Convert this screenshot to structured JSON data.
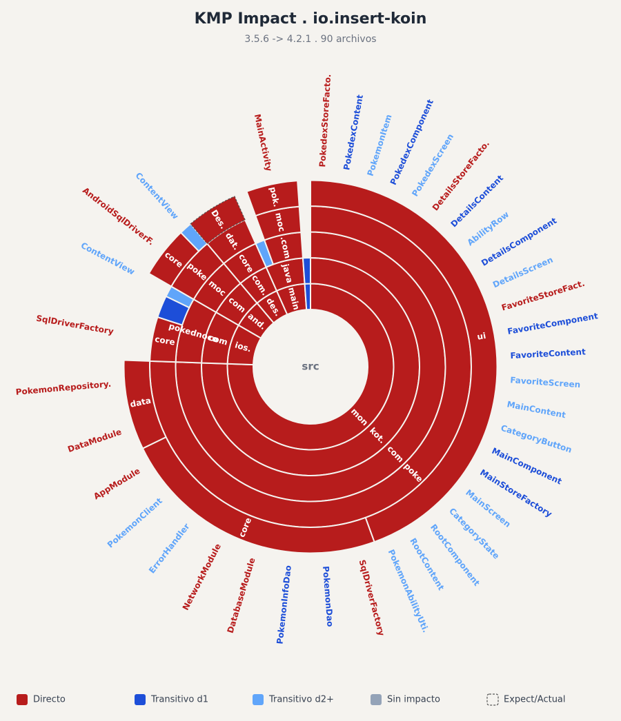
{
  "chart_data": {
    "type": "sunburst",
    "title": "KMP Impact . io.insert-koin",
    "subtitle": "3.5.6 -> 4.2.1 . 90 archivos",
    "root": "src",
    "legend": [
      {
        "name": "Directo",
        "color": "#b71c1c"
      },
      {
        "name": "Transitivo d1",
        "color": "#1d4ed8"
      },
      {
        "name": "Transitivo d2+",
        "color": "#60a5fa"
      },
      {
        "name": "Sin impacto",
        "color": "#94a3b8"
      },
      {
        "name": "Expect/Actual",
        "dashed": true
      }
    ],
    "nodes": [
      {
        "name": "mon",
        "status": 0,
        "files": 68,
        "children": [
          {
            "name": "kot.",
            "status": 0,
            "files": 68,
            "children": [
              {
                "name": "com",
                "status": 0,
                "files": 68,
                "children": [
                  {
                    "name": "poke",
                    "status": 0,
                    "files": 68,
                    "children": [
                      {
                        "name": "ui",
                        "status": 0,
                        "files": 40,
                        "leaves": [
                          {
                            "name": "PokedexStoreFacto.",
                            "status": 0
                          },
                          {
                            "name": "PokedexContent",
                            "status": 1
                          },
                          {
                            "name": "PokemonItem",
                            "status": 2
                          },
                          {
                            "name": "PokedexComponent",
                            "status": 1
                          },
                          {
                            "name": "PokedexScreen",
                            "status": 2
                          },
                          {
                            "name": "DetailsStoreFacto.",
                            "status": 0
                          },
                          {
                            "name": "DetailsContent",
                            "status": 1
                          },
                          {
                            "name": "AbilityRow",
                            "status": 2
                          },
                          {
                            "name": "DetailsComponent",
                            "status": 1
                          },
                          {
                            "name": "DetailsScreen",
                            "status": 2
                          },
                          {
                            "name": "FavoriteStoreFact.",
                            "status": 0
                          },
                          {
                            "name": "FavoriteComponent",
                            "status": 1
                          },
                          {
                            "name": "FavoriteContent",
                            "status": 1
                          },
                          {
                            "name": "FavoriteScreen",
                            "status": 2
                          },
                          {
                            "name": "MainContent",
                            "status": 2
                          },
                          {
                            "name": "CategoryButton",
                            "status": 2
                          },
                          {
                            "name": "MainComponent",
                            "status": 1
                          },
                          {
                            "name": "MainStoreFactory",
                            "status": 1
                          },
                          {
                            "name": "MainScreen",
                            "status": 2
                          },
                          {
                            "name": "CategoryState",
                            "status": 2
                          },
                          {
                            "name": "RootComponent",
                            "status": 2
                          },
                          {
                            "name": "RootContent",
                            "status": 2
                          },
                          {
                            "name": "PokemonAbilityUti.",
                            "status": 2
                          }
                        ]
                      },
                      {
                        "name": "core",
                        "status": 0,
                        "files": 21,
                        "leaves": [
                          {
                            "name": "SqlDriverFactory",
                            "status": 0
                          },
                          {
                            "name": "PokemonDao",
                            "status": 1
                          },
                          {
                            "name": "PokemonInfoDao",
                            "status": 1
                          },
                          {
                            "name": "DatabaseModule",
                            "status": 0
                          },
                          {
                            "name": "NetworkModule",
                            "status": 0
                          },
                          {
                            "name": "ErrorHandler",
                            "status": 2
                          },
                          {
                            "name": "PokemonClient",
                            "status": 2
                          },
                          {
                            "name": "AppModule",
                            "status": 0
                          }
                        ]
                      },
                      {
                        "name": "data",
                        "status": 0,
                        "files": 7,
                        "leaves": [
                          {
                            "name": "DataModule",
                            "status": 0
                          },
                          {
                            "name": "PokemonRepository.",
                            "status": 0
                          }
                        ]
                      }
                    ]
                  }
                ]
              }
            ]
          }
        ]
      },
      {
        "name": "ios.",
        "status": 0,
        "files": 7,
        "children": [
          {
            "name": "com",
            "status": 0,
            "files": 7,
            "children": [
              {
                "name": "pokednoco",
                "status": 0,
                "files": 7,
                "children": [
                  {
                    "name": "core",
                    "status": 0,
                    "files": 4,
                    "leaves": [
                      {
                        "name": "SqlDriverFactory",
                        "status": 0
                      }
                    ]
                  },
                  {
                    "status": 1,
                    "files": 2
                  },
                  {
                    "status": 2,
                    "files": 1,
                    "leaves": [
                      {
                        "name": "ContentView",
                        "status": 2
                      }
                    ]
                  }
                ]
              }
            ]
          }
        ]
      },
      {
        "name": "and.",
        "status": 0,
        "files": 5,
        "children": [
          {
            "name": "com",
            "status": 0,
            "files": 5,
            "children": [
              {
                "name": "moc",
                "status": 0,
                "files": 5,
                "children": [
                  {
                    "name": "poke",
                    "status": 0,
                    "files": 5,
                    "children": [
                      {
                        "name": "core",
                        "status": 0,
                        "files": 4,
                        "leaves": [
                          {
                            "name": "AndroidSqlDriverF.",
                            "status": 0
                          }
                        ]
                      },
                      {
                        "status": 2,
                        "files": 1,
                        "leaves": [
                          {
                            "name": "ContentView",
                            "status": 2
                          }
                        ]
                      }
                    ]
                  }
                ]
              }
            ]
          }
        ]
      },
      {
        "name": "des.",
        "status": 0,
        "files": 4,
        "children": [
          {
            "name": "com.",
            "status": 0,
            "files": 4,
            "children": [
              {
                "name": "core",
                "status": 0,
                "files": 4,
                "children": [
                  {
                    "name": "dat.",
                    "status": 0,
                    "files": 4,
                    "children": [
                      {
                        "name": "Des.",
                        "status": 0,
                        "files": 4,
                        "expect": true
                      }
                    ]
                  }
                ]
              }
            ]
          }
        ]
      },
      {
        "name": "main",
        "status": 0,
        "files": 5,
        "children": [
          {
            "name": "java",
            "status": 0,
            "files": 5,
            "children": [
              {
                "status": 2,
                "files": 1
              },
              {
                "name": ".com",
                "status": 0,
                "files": 4,
                "children": [
                  {
                    "name": "moc",
                    "status": 0,
                    "files": 4,
                    "children": [
                      {
                        "name": "pok.",
                        "status": 0,
                        "files": 4,
                        "leaves": [
                          {
                            "name": "MainActivity",
                            "status": 0
                          }
                        ]
                      }
                    ]
                  }
                ]
              }
            ]
          }
        ]
      },
      {
        "status": 1,
        "files": 1,
        "children": [
          {
            "status": 1,
            "files": 1
          }
        ]
      }
    ]
  }
}
